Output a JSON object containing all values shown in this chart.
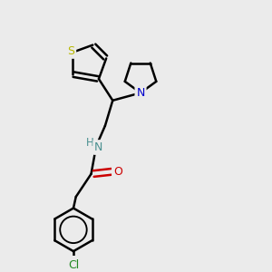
{
  "background_color": "#ebebeb",
  "bond_color": "#000000",
  "bond_width": 1.8,
  "atom_colors": {
    "S": "#b8b800",
    "N_pyrrolidine": "#0000cc",
    "N_amide": "#4a9090",
    "O": "#cc0000",
    "Cl": "#228822",
    "C": "#000000"
  },
  "font_size": 8.5,
  "fig_width": 3.0,
  "fig_height": 3.0,
  "dpi": 100,
  "xlim": [
    0,
    10
  ],
  "ylim": [
    0,
    10
  ]
}
